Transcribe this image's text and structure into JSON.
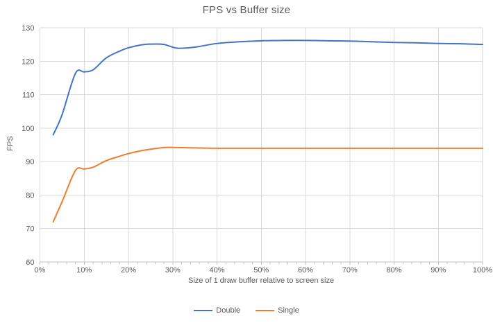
{
  "styles": {
    "background": "#FFFFFF",
    "title_color": "#595959",
    "label_color": "#595959",
    "grid_color": "#D9D9D9",
    "axis_color": "#BFBFBF"
  },
  "chart_data": {
    "type": "line",
    "title": "FPS vs Buffer size",
    "xlabel": "Size of 1 draw buffer relative to screen size",
    "ylabel": "FPS",
    "xlim": [
      0,
      100
    ],
    "ylim": [
      60,
      130
    ],
    "grid": true,
    "legend_position": "bottom",
    "x_ticks": [
      "0%",
      "10%",
      "20%",
      "30%",
      "40%",
      "50%",
      "60%",
      "70%",
      "80%",
      "90%",
      "100%"
    ],
    "x_tick_values": [
      0,
      10,
      20,
      30,
      40,
      50,
      60,
      70,
      80,
      90,
      100
    ],
    "x_minor_tick_step": 2,
    "y_ticks": [
      "60",
      "70",
      "80",
      "90",
      "100",
      "110",
      "120",
      "130"
    ],
    "y_tick_values": [
      60,
      70,
      80,
      90,
      100,
      110,
      120,
      130
    ],
    "x": [
      3,
      5,
      8,
      10,
      12,
      15,
      18,
      20,
      23,
      25,
      28,
      31,
      35,
      40,
      45,
      50,
      55,
      60,
      65,
      70,
      75,
      80,
      85,
      90,
      95,
      100
    ],
    "series": [
      {
        "name": "Double",
        "color": "#4472C4",
        "values": [
          98,
          104,
          116.3,
          116.8,
          117.4,
          121,
          123,
          124,
          124.9,
          125.1,
          125,
          123.9,
          124.2,
          125.3,
          125.8,
          126.1,
          126.2,
          126.2,
          126.1,
          126,
          125.8,
          125.6,
          125.5,
          125.3,
          125.2,
          125
        ]
      },
      {
        "name": "Single",
        "color": "#ED7D31",
        "values": [
          72,
          78,
          87.3,
          87.8,
          88.3,
          90.3,
          91.6,
          92.4,
          93.3,
          93.7,
          94.2,
          94.2,
          94.1,
          94,
          94,
          94,
          94,
          94,
          94,
          94,
          94,
          94,
          94,
          94,
          94,
          94
        ]
      }
    ]
  }
}
